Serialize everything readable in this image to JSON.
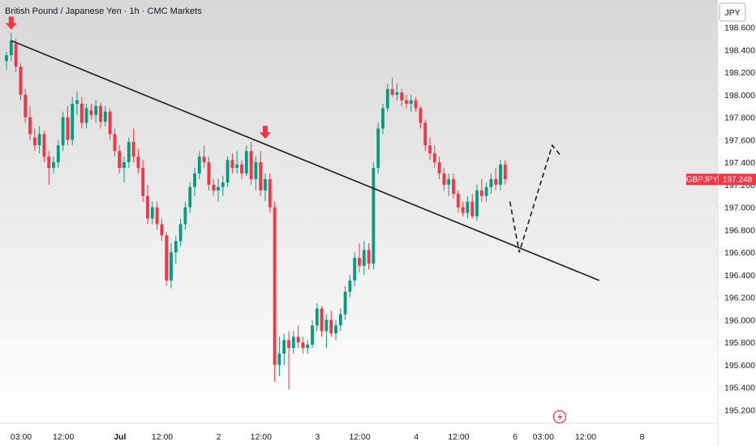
{
  "chart_data": {
    "type": "candlestick",
    "title": "British Pound / Japanese Yen · 1h · CMC Markets",
    "currency": "JPY",
    "symbol_label": "GBPJPY",
    "last_price": "197.248",
    "last_price_value": 197.248,
    "ylim": [
      195.1,
      198.75
    ],
    "y_ticks": [
      "198.600",
      "198.400",
      "198.200",
      "198.000",
      "197.800",
      "197.600",
      "197.400",
      "197.200",
      "197.000",
      "196.800",
      "196.600",
      "196.400",
      "196.200",
      "196.000",
      "195.800",
      "195.600",
      "195.400",
      "195.200"
    ],
    "y_tick_values": [
      198.6,
      198.4,
      198.2,
      198.0,
      197.8,
      197.6,
      197.4,
      197.2,
      197.0,
      196.8,
      196.6,
      196.4,
      196.2,
      196.0,
      195.8,
      195.6,
      195.4,
      195.2
    ],
    "x_ticks": [
      "03:00",
      "12:00",
      "Jul",
      "12:00",
      "2",
      "12:00",
      "3",
      "12:00",
      "4",
      "12:00",
      "6",
      "03:00",
      "12:00",
      "8"
    ],
    "x_tick_index": [
      0,
      9,
      21,
      30,
      42,
      51,
      63,
      72,
      84,
      93,
      105,
      111,
      120,
      132
    ],
    "x_tick_bold": [
      false,
      false,
      true,
      false,
      false,
      false,
      false,
      false,
      false,
      false,
      false,
      false,
      false,
      false
    ],
    "candles": [
      [
        198.3,
        198.38,
        198.22,
        198.35
      ],
      [
        198.35,
        198.55,
        198.3,
        198.48
      ],
      [
        198.45,
        198.5,
        198.2,
        198.25
      ],
      [
        198.25,
        198.28,
        197.95,
        198.0
      ],
      [
        198.0,
        198.05,
        197.75,
        197.8
      ],
      [
        197.8,
        197.9,
        197.6,
        197.65
      ],
      [
        197.62,
        197.7,
        197.5,
        197.55
      ],
      [
        197.55,
        197.72,
        197.48,
        197.65
      ],
      [
        197.65,
        197.68,
        197.4,
        197.45
      ],
      [
        197.45,
        197.5,
        197.2,
        197.35
      ],
      [
        197.35,
        197.45,
        197.3,
        197.4
      ],
      [
        197.4,
        197.6,
        197.35,
        197.55
      ],
      [
        197.55,
        197.85,
        197.5,
        197.8
      ],
      [
        197.8,
        197.9,
        197.55,
        197.6
      ],
      [
        197.6,
        197.98,
        197.55,
        197.92
      ],
      [
        197.92,
        198.03,
        197.82,
        197.95
      ],
      [
        197.92,
        197.98,
        197.7,
        197.75
      ],
      [
        197.75,
        197.92,
        197.7,
        197.88
      ],
      [
        197.86,
        197.92,
        197.78,
        197.82
      ],
      [
        197.82,
        197.95,
        197.75,
        197.9
      ],
      [
        197.9,
        197.93,
        197.7,
        197.76
      ],
      [
        197.76,
        197.9,
        197.72,
        197.85
      ],
      [
        197.85,
        197.88,
        197.6,
        197.65
      ],
      [
        197.65,
        197.7,
        197.45,
        197.5
      ],
      [
        197.5,
        197.55,
        197.3,
        197.35
      ],
      [
        197.35,
        197.45,
        197.22,
        197.4
      ],
      [
        197.4,
        197.62,
        197.35,
        197.58
      ],
      [
        197.58,
        197.7,
        197.4,
        197.45
      ],
      [
        197.45,
        197.52,
        197.3,
        197.35
      ],
      [
        197.35,
        197.42,
        197.05,
        197.1
      ],
      [
        197.1,
        197.2,
        196.85,
        196.9
      ],
      [
        196.9,
        197.05,
        196.85,
        197.0
      ],
      [
        197.0,
        197.05,
        196.8,
        196.85
      ],
      [
        196.85,
        196.9,
        196.7,
        196.75
      ],
      [
        196.75,
        196.78,
        196.3,
        196.35
      ],
      [
        196.35,
        196.68,
        196.28,
        196.6
      ],
      [
        196.6,
        196.75,
        196.5,
        196.7
      ],
      [
        196.7,
        196.9,
        196.65,
        196.85
      ],
      [
        196.85,
        197.05,
        196.8,
        197.0
      ],
      [
        197.0,
        197.22,
        196.95,
        197.18
      ],
      [
        197.18,
        197.35,
        197.1,
        197.3
      ],
      [
        197.3,
        197.5,
        197.25,
        197.45
      ],
      [
        197.45,
        197.55,
        197.35,
        197.4
      ],
      [
        197.4,
        197.45,
        197.15,
        197.2
      ],
      [
        197.2,
        197.25,
        197.1,
        197.15
      ],
      [
        197.15,
        197.25,
        197.05,
        197.18
      ],
      [
        197.18,
        197.28,
        197.1,
        197.22
      ],
      [
        197.22,
        197.45,
        197.18,
        197.42
      ],
      [
        197.42,
        197.48,
        197.3,
        197.35
      ],
      [
        197.35,
        197.5,
        197.3,
        197.38
      ],
      [
        197.38,
        197.42,
        197.25,
        197.3
      ],
      [
        197.3,
        197.55,
        197.28,
        197.5
      ],
      [
        197.5,
        197.58,
        197.2,
        197.25
      ],
      [
        197.25,
        197.45,
        197.15,
        197.4
      ],
      [
        197.4,
        197.5,
        197.1,
        197.15
      ],
      [
        197.15,
        197.3,
        197.05,
        197.25
      ],
      [
        197.25,
        197.3,
        196.95,
        197.0
      ],
      [
        197.0,
        197.05,
        195.45,
        195.6
      ],
      [
        195.6,
        195.85,
        195.5,
        195.7
      ],
      [
        195.7,
        195.88,
        195.6,
        195.82
      ],
      [
        195.82,
        195.9,
        195.38,
        195.75
      ],
      [
        195.75,
        195.9,
        195.7,
        195.85
      ],
      [
        195.85,
        195.95,
        195.75,
        195.8
      ],
      [
        195.8,
        195.85,
        195.7,
        195.75
      ],
      [
        195.75,
        195.82,
        195.7,
        195.78
      ],
      [
        195.78,
        196.0,
        195.75,
        195.95
      ],
      [
        195.95,
        196.15,
        195.9,
        196.1
      ],
      [
        196.1,
        196.12,
        195.85,
        195.9
      ],
      [
        195.9,
        196.05,
        195.75,
        196.0
      ],
      [
        196.0,
        196.08,
        195.85,
        195.88
      ],
      [
        195.88,
        196.0,
        195.82,
        195.95
      ],
      [
        195.95,
        196.1,
        195.9,
        196.05
      ],
      [
        196.05,
        196.3,
        196.0,
        196.25
      ],
      [
        196.25,
        196.4,
        196.2,
        196.35
      ],
      [
        196.35,
        196.6,
        196.3,
        196.55
      ],
      [
        196.55,
        196.68,
        196.42,
        196.48
      ],
      [
        196.48,
        196.7,
        196.4,
        196.62
      ],
      [
        196.62,
        196.68,
        196.45,
        196.5
      ],
      [
        196.5,
        197.4,
        196.45,
        197.35
      ],
      [
        197.35,
        197.75,
        197.3,
        197.7
      ],
      [
        197.7,
        197.92,
        197.65,
        197.88
      ],
      [
        197.88,
        198.1,
        197.85,
        198.05
      ],
      [
        198.05,
        198.15,
        197.98,
        198.0
      ],
      [
        198.0,
        198.1,
        197.95,
        198.02
      ],
      [
        198.02,
        198.05,
        197.9,
        197.95
      ],
      [
        197.95,
        198.0,
        197.88,
        197.92
      ],
      [
        197.92,
        198.0,
        197.85,
        197.95
      ],
      [
        197.95,
        197.98,
        197.85,
        197.88
      ],
      [
        197.88,
        197.9,
        197.7,
        197.75
      ],
      [
        197.75,
        197.78,
        197.5,
        197.55
      ],
      [
        197.55,
        197.62,
        197.42,
        197.48
      ],
      [
        197.48,
        197.55,
        197.35,
        197.4
      ],
      [
        197.4,
        197.45,
        197.25,
        197.3
      ],
      [
        197.3,
        197.35,
        197.15,
        197.2
      ],
      [
        197.2,
        197.3,
        197.1,
        197.25
      ],
      [
        197.25,
        197.3,
        197.08,
        197.12
      ],
      [
        197.12,
        197.15,
        196.95,
        197.0
      ],
      [
        197.0,
        197.05,
        196.92,
        196.95
      ],
      [
        196.95,
        197.1,
        196.9,
        197.05
      ],
      [
        197.05,
        197.12,
        196.9,
        196.92
      ],
      [
        196.92,
        197.2,
        196.88,
        197.15
      ],
      [
        197.15,
        197.25,
        197.05,
        197.1
      ],
      [
        197.1,
        197.22,
        197.05,
        197.18
      ],
      [
        197.18,
        197.3,
        197.12,
        197.25
      ],
      [
        197.25,
        197.35,
        197.15,
        197.2
      ],
      [
        197.2,
        197.42,
        197.15,
        197.38
      ],
      [
        197.38,
        197.42,
        197.2,
        197.248
      ]
    ],
    "trendline": [
      [
        1,
        198.48
      ],
      [
        126,
        196.35
      ]
    ],
    "projection": [
      [
        107,
        197.05
      ],
      [
        109,
        196.6
      ],
      [
        116,
        197.55
      ],
      [
        118,
        197.45
      ]
    ],
    "markers": [
      [
        1,
        198.55
      ],
      [
        55,
        197.58
      ]
    ],
    "colors": {
      "up": "#089981",
      "down": "#f23645",
      "grid": "#f0f3fa",
      "text": "#131722",
      "trendline": "#1c1c1c",
      "price_label": "#f23645",
      "axis_border": "#e0e3eb",
      "plot_top": "#d8d8d8",
      "plot_bottom": "#ffffff"
    }
  }
}
